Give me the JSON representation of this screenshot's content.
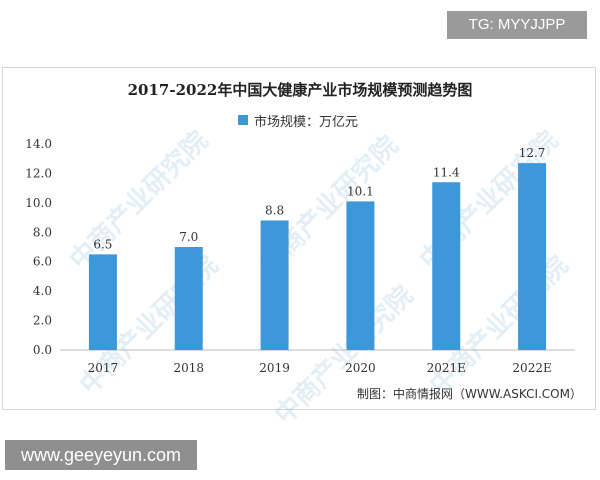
{
  "overlay": {
    "tag": "TG: MYYJJPP",
    "url": "www.geeyeyun.com"
  },
  "watermark_text": "中商产业研究院",
  "colors": {
    "bar": "#3d98da",
    "axis": "#bbbbbb",
    "tick_text": "#333333",
    "grid": "#eeeeee"
  },
  "chart_data": {
    "type": "bar",
    "title": "2017-2022年中国大健康产业市场规模预测趋势图",
    "xlabel": "",
    "ylabel": "",
    "categories": [
      "2017",
      "2018",
      "2019",
      "2020",
      "2021E",
      "2022E"
    ],
    "series": [
      {
        "name": "市场规模：万亿元",
        "values": [
          6.5,
          7.0,
          8.8,
          10.1,
          11.4,
          12.7
        ],
        "labels": [
          "6.5",
          "7.0",
          "8.8",
          "10.1",
          "11.4",
          "12.7"
        ]
      }
    ],
    "ylim": [
      0,
      14
    ],
    "yticks": [
      0,
      2,
      4,
      6,
      8,
      10,
      12,
      14
    ],
    "ytick_labels": [
      "0.0",
      "2.0",
      "4.0",
      "6.0",
      "8.0",
      "10.0",
      "12.0",
      "14.0"
    ],
    "grid": false,
    "legend_position": "top-center",
    "source": "制图：中商情报网（WWW.ASKCI.COM）"
  }
}
